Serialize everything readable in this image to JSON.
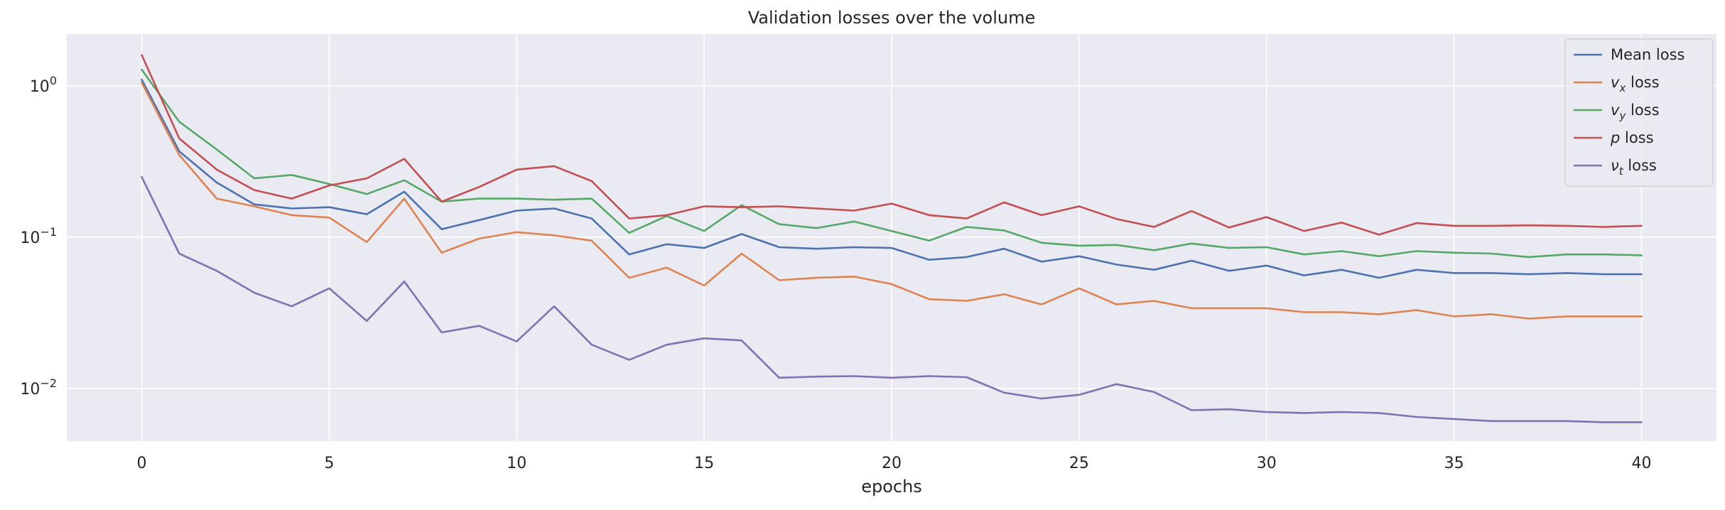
{
  "chart_data": {
    "type": "line",
    "title": "Validation losses over the volume",
    "xlabel": "epochs",
    "ylabel": "",
    "yscale": "log",
    "xlim": [
      -2,
      42
    ],
    "ylim": [
      0.0045,
      2.2
    ],
    "grid": true,
    "legend_position": "top-right",
    "x_ticks": [
      0,
      5,
      10,
      15,
      20,
      25,
      30,
      35,
      40
    ],
    "y_ticks": [
      {
        "value": 1,
        "base": "10",
        "exp": "0"
      },
      {
        "value": 0.1,
        "base": "10",
        "exp": "−1"
      },
      {
        "value": 0.01,
        "base": "10",
        "exp": "−2"
      }
    ],
    "x": [
      0,
      1,
      2,
      3,
      4,
      5,
      6,
      7,
      8,
      9,
      10,
      11,
      12,
      13,
      14,
      15,
      16,
      17,
      18,
      19,
      20,
      21,
      22,
      23,
      24,
      25,
      26,
      27,
      28,
      29,
      30,
      31,
      32,
      33,
      34,
      35,
      36,
      37,
      38,
      39,
      40
    ],
    "series": [
      {
        "name": "Mean loss",
        "legend": {
          "sym": "",
          "sub": "",
          "rest": "Mean loss"
        },
        "color": "#4c72b0",
        "values": [
          1.1,
          0.37,
          0.23,
          0.165,
          0.155,
          0.158,
          0.142,
          0.2,
          0.113,
          0.13,
          0.15,
          0.155,
          0.133,
          0.077,
          0.09,
          0.085,
          0.105,
          0.086,
          0.084,
          0.086,
          0.085,
          0.071,
          0.074,
          0.084,
          0.069,
          0.075,
          0.066,
          0.061,
          0.07,
          0.06,
          0.065,
          0.056,
          0.061,
          0.054,
          0.061,
          0.058,
          0.058,
          0.057,
          0.058,
          0.057,
          0.057
        ]
      },
      {
        "name": "v_x loss",
        "legend": {
          "sym": "v",
          "sub": "x",
          "rest": " loss"
        },
        "color": "#dd8452",
        "values": [
          1.05,
          0.35,
          0.18,
          0.16,
          0.14,
          0.135,
          0.093,
          0.18,
          0.079,
          0.098,
          0.108,
          0.103,
          0.095,
          0.054,
          0.063,
          0.048,
          0.078,
          0.052,
          0.054,
          0.055,
          0.049,
          0.039,
          0.038,
          0.042,
          0.036,
          0.046,
          0.036,
          0.038,
          0.034,
          0.034,
          0.034,
          0.032,
          0.032,
          0.031,
          0.033,
          0.03,
          0.031,
          0.029,
          0.03,
          0.03,
          0.03
        ]
      },
      {
        "name": "v_y loss",
        "legend": {
          "sym": "v",
          "sub": "y",
          "rest": " loss"
        },
        "color": "#55a868",
        "values": [
          1.28,
          0.58,
          0.38,
          0.245,
          0.258,
          0.225,
          0.193,
          0.238,
          0.172,
          0.18,
          0.18,
          0.177,
          0.18,
          0.107,
          0.138,
          0.11,
          0.163,
          0.122,
          0.115,
          0.127,
          0.11,
          0.095,
          0.117,
          0.111,
          0.092,
          0.088,
          0.089,
          0.082,
          0.091,
          0.085,
          0.086,
          0.077,
          0.081,
          0.075,
          0.081,
          0.079,
          0.078,
          0.074,
          0.077,
          0.077,
          0.076
        ]
      },
      {
        "name": "p loss",
        "legend": {
          "sym": "p",
          "sub": "",
          "rest": " loss"
        },
        "color": "#c44e52",
        "values": [
          1.6,
          0.45,
          0.28,
          0.205,
          0.18,
          0.22,
          0.245,
          0.33,
          0.172,
          0.215,
          0.28,
          0.295,
          0.235,
          0.133,
          0.14,
          0.16,
          0.158,
          0.16,
          0.155,
          0.15,
          0.167,
          0.14,
          0.133,
          0.17,
          0.14,
          0.16,
          0.132,
          0.117,
          0.149,
          0.116,
          0.136,
          0.11,
          0.125,
          0.104,
          0.124,
          0.119,
          0.119,
          0.12,
          0.119,
          0.117,
          0.119
        ]
      },
      {
        "name": "nu_t loss",
        "legend": {
          "sym": "ν",
          "sub": "t",
          "rest": " loss"
        },
        "color": "#8172b3",
        "values": [
          0.25,
          0.078,
          0.06,
          0.043,
          0.035,
          0.046,
          0.028,
          0.051,
          0.0235,
          0.026,
          0.0205,
          0.035,
          0.0195,
          0.0155,
          0.0195,
          0.0215,
          0.0208,
          0.0118,
          0.012,
          0.0121,
          0.0118,
          0.0121,
          0.0119,
          0.0094,
          0.0086,
          0.0091,
          0.0107,
          0.0095,
          0.0072,
          0.0073,
          0.007,
          0.0069,
          0.007,
          0.0069,
          0.0065,
          0.0063,
          0.0061,
          0.0061,
          0.0061,
          0.006,
          0.006
        ]
      }
    ]
  }
}
